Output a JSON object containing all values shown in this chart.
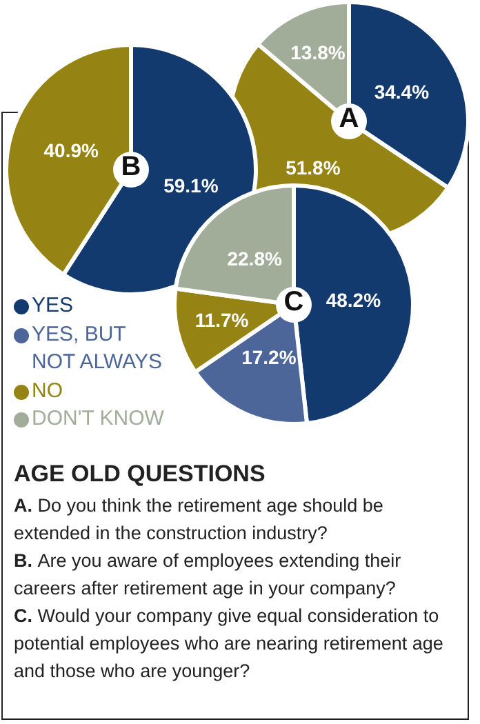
{
  "chart_data": [
    {
      "type": "pie",
      "title": "A",
      "categories": [
        null,
        null,
        null
      ],
      "values": [
        34.4,
        51.8,
        13.8
      ],
      "colors": [
        "#123a6e",
        "#958413",
        "#a2ad99"
      ],
      "value_labels": [
        "34.4%",
        "51.8%",
        "13.8%"
      ]
    },
    {
      "type": "pie",
      "title": "B",
      "categories": [
        null,
        null
      ],
      "values": [
        59.1,
        40.9
      ],
      "colors": [
        "#123a6e",
        "#958413"
      ],
      "value_labels": [
        "59.1%",
        "40.9%"
      ]
    },
    {
      "type": "pie",
      "title": "C",
      "categories": [
        "YES",
        "YES, BUT NOT ALWAYS",
        "NO",
        "DON'T KNOW"
      ],
      "values": [
        48.2,
        17.2,
        11.7,
        22.8
      ],
      "colors": [
        "#123a6e",
        "#4c6699",
        "#958413",
        "#a2ad99"
      ],
      "value_labels": [
        "48.2%",
        "17.2%",
        "11.7%",
        "22.8%"
      ],
      "legend": "left"
    },
    {
      "type": "other",
      "title": "AGE OLD QUESTIONS",
      "annotations": [
        "A. Do you think the retirement age should be extended in the construction industry?",
        "B. Are you aware of employees extending their careers after retirement age in your company?",
        "C. Would your company give equal consideration to potential employees who are nearing retirement age and those who are younger?"
      ]
    }
  ]
}
